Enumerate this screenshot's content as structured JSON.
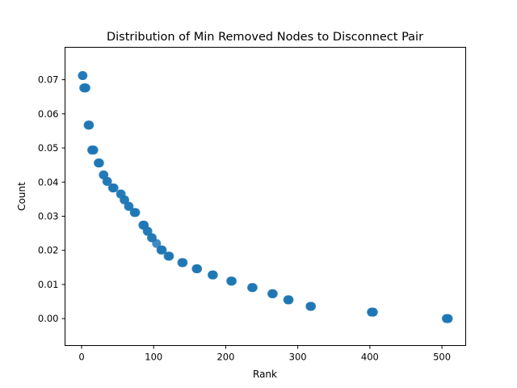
{
  "chart_data": {
    "type": "scatter",
    "title": "Distribution of Min Removed Nodes to Disconnect Pair",
    "xlabel": "Rank",
    "ylabel": "Count",
    "xlim": [
      -23,
      533
    ],
    "ylim": [
      -0.0079,
      0.0795
    ],
    "xticks": [
      0,
      100,
      200,
      300,
      400,
      500
    ],
    "xtick_labels": [
      "0",
      "100",
      "200",
      "300",
      "400",
      "500"
    ],
    "yticks": [
      0.0,
      0.01,
      0.02,
      0.03,
      0.04,
      0.05,
      0.06,
      0.07
    ],
    "ytick_labels": [
      "0.00",
      "0.01",
      "0.02",
      "0.03",
      "0.04",
      "0.05",
      "0.06",
      "0.07"
    ],
    "grid": false,
    "color": "#1f77b4",
    "series": [
      {
        "x": [
          1,
          2,
          3,
          4,
          5,
          6,
          9,
          10,
          11,
          14,
          15,
          16,
          17,
          23,
          24,
          25,
          30,
          31,
          35,
          36,
          43,
          44,
          45,
          54,
          55,
          59,
          60,
          65,
          66,
          73,
          74,
          75,
          85,
          86,
          87,
          91,
          92,
          97,
          98,
          104,
          110,
          111,
          112,
          120,
          121,
          122,
          139,
          140,
          141,
          159,
          160,
          161,
          181,
          182,
          183,
          207,
          208,
          209,
          236,
          237,
          238,
          264,
          265,
          266,
          286,
          287,
          288,
          317,
          318,
          319,
          402,
          403,
          404,
          405,
          506,
          507,
          508,
          509
        ],
        "y": [
          0.0712,
          0.0712,
          0.0676,
          0.0676,
          0.0676,
          0.0676,
          0.0567,
          0.0567,
          0.0567,
          0.0494,
          0.0494,
          0.0494,
          0.0494,
          0.0456,
          0.0456,
          0.0456,
          0.0421,
          0.0421,
          0.0402,
          0.0402,
          0.0383,
          0.0383,
          0.0383,
          0.0365,
          0.0365,
          0.0348,
          0.0348,
          0.0329,
          0.0329,
          0.0311,
          0.0311,
          0.0311,
          0.0274,
          0.0274,
          0.0274,
          0.0256,
          0.0256,
          0.0237,
          0.0237,
          0.022,
          0.0201,
          0.0201,
          0.0201,
          0.0183,
          0.0183,
          0.0183,
          0.0164,
          0.0164,
          0.0164,
          0.0146,
          0.0146,
          0.0146,
          0.0128,
          0.0128,
          0.0128,
          0.011,
          0.011,
          0.011,
          0.0091,
          0.0091,
          0.0091,
          0.0073,
          0.0073,
          0.0073,
          0.0055,
          0.0055,
          0.0055,
          0.0036,
          0.0036,
          0.0036,
          0.0019,
          0.0019,
          0.0019,
          0.0019,
          0.0,
          0.0,
          0.0,
          0.0
        ]
      }
    ]
  }
}
